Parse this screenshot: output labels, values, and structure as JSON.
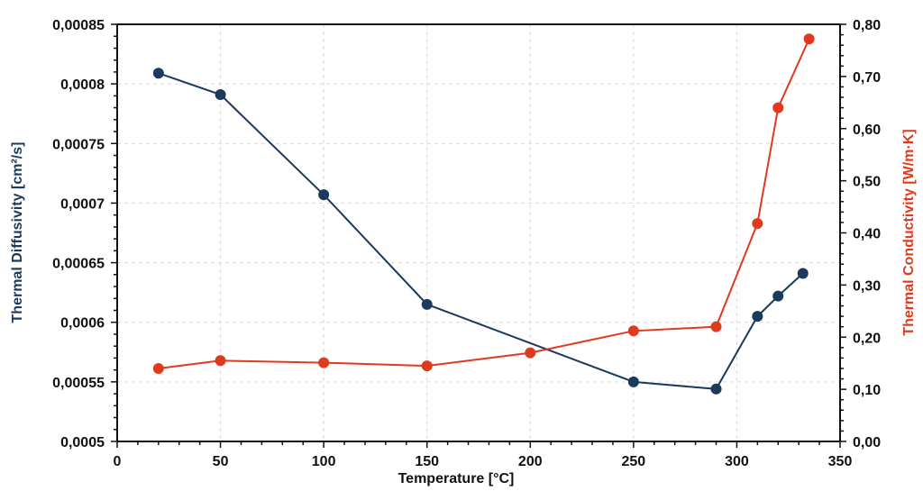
{
  "chart_data": {
    "type": "line",
    "xlabel": "Temperature [°C]",
    "ylabel_left": "Thermal Diffusivity [cm²/s]",
    "ylabel_right": "Thermal Conductivity [W/m·K]",
    "xlim": [
      0,
      350
    ],
    "ylim_left": [
      0.0005,
      0.00085
    ],
    "ylim_right": [
      0.0,
      0.8
    ],
    "grid": true,
    "x_ticks": [
      0,
      50,
      100,
      150,
      200,
      250,
      300,
      350
    ],
    "x_tick_labels": [
      "0",
      "50",
      "100",
      "150",
      "200",
      "250",
      "300",
      "350"
    ],
    "y_left_ticks": [
      0.0005,
      0.00055,
      0.0006,
      0.00065,
      0.0007,
      0.00075,
      0.0008,
      0.00085
    ],
    "y_left_tick_labels": [
      "0,0005",
      "0,00055",
      "0,0006",
      "0,00065",
      "0,0007",
      "0,00075",
      "0,0008",
      "0,00085"
    ],
    "y_right_ticks": [
      0.0,
      0.1,
      0.2,
      0.3,
      0.4,
      0.5,
      0.6,
      0.7,
      0.8
    ],
    "y_right_tick_labels": [
      "0,00",
      "0,10",
      "0,20",
      "0,30",
      "0,40",
      "0,50",
      "0,60",
      "0,70",
      "0,80"
    ],
    "series": [
      {
        "name": "Thermal Diffusivity",
        "axis": "left",
        "color": "#1b3a5c",
        "x": [
          20,
          50,
          100,
          150,
          250,
          290,
          310,
          320,
          332
        ],
        "values": [
          0.000809,
          0.000791,
          0.000707,
          0.000615,
          0.00055,
          0.000544,
          0.000605,
          0.000622,
          0.000641
        ]
      },
      {
        "name": "Thermal Conductivity",
        "axis": "right",
        "color": "#e03a1e",
        "x": [
          20,
          50,
          100,
          150,
          200,
          250,
          290,
          310,
          320,
          335
        ],
        "values": [
          0.14,
          0.155,
          0.151,
          0.145,
          0.17,
          0.212,
          0.22,
          0.418,
          0.64,
          0.772
        ]
      }
    ]
  }
}
